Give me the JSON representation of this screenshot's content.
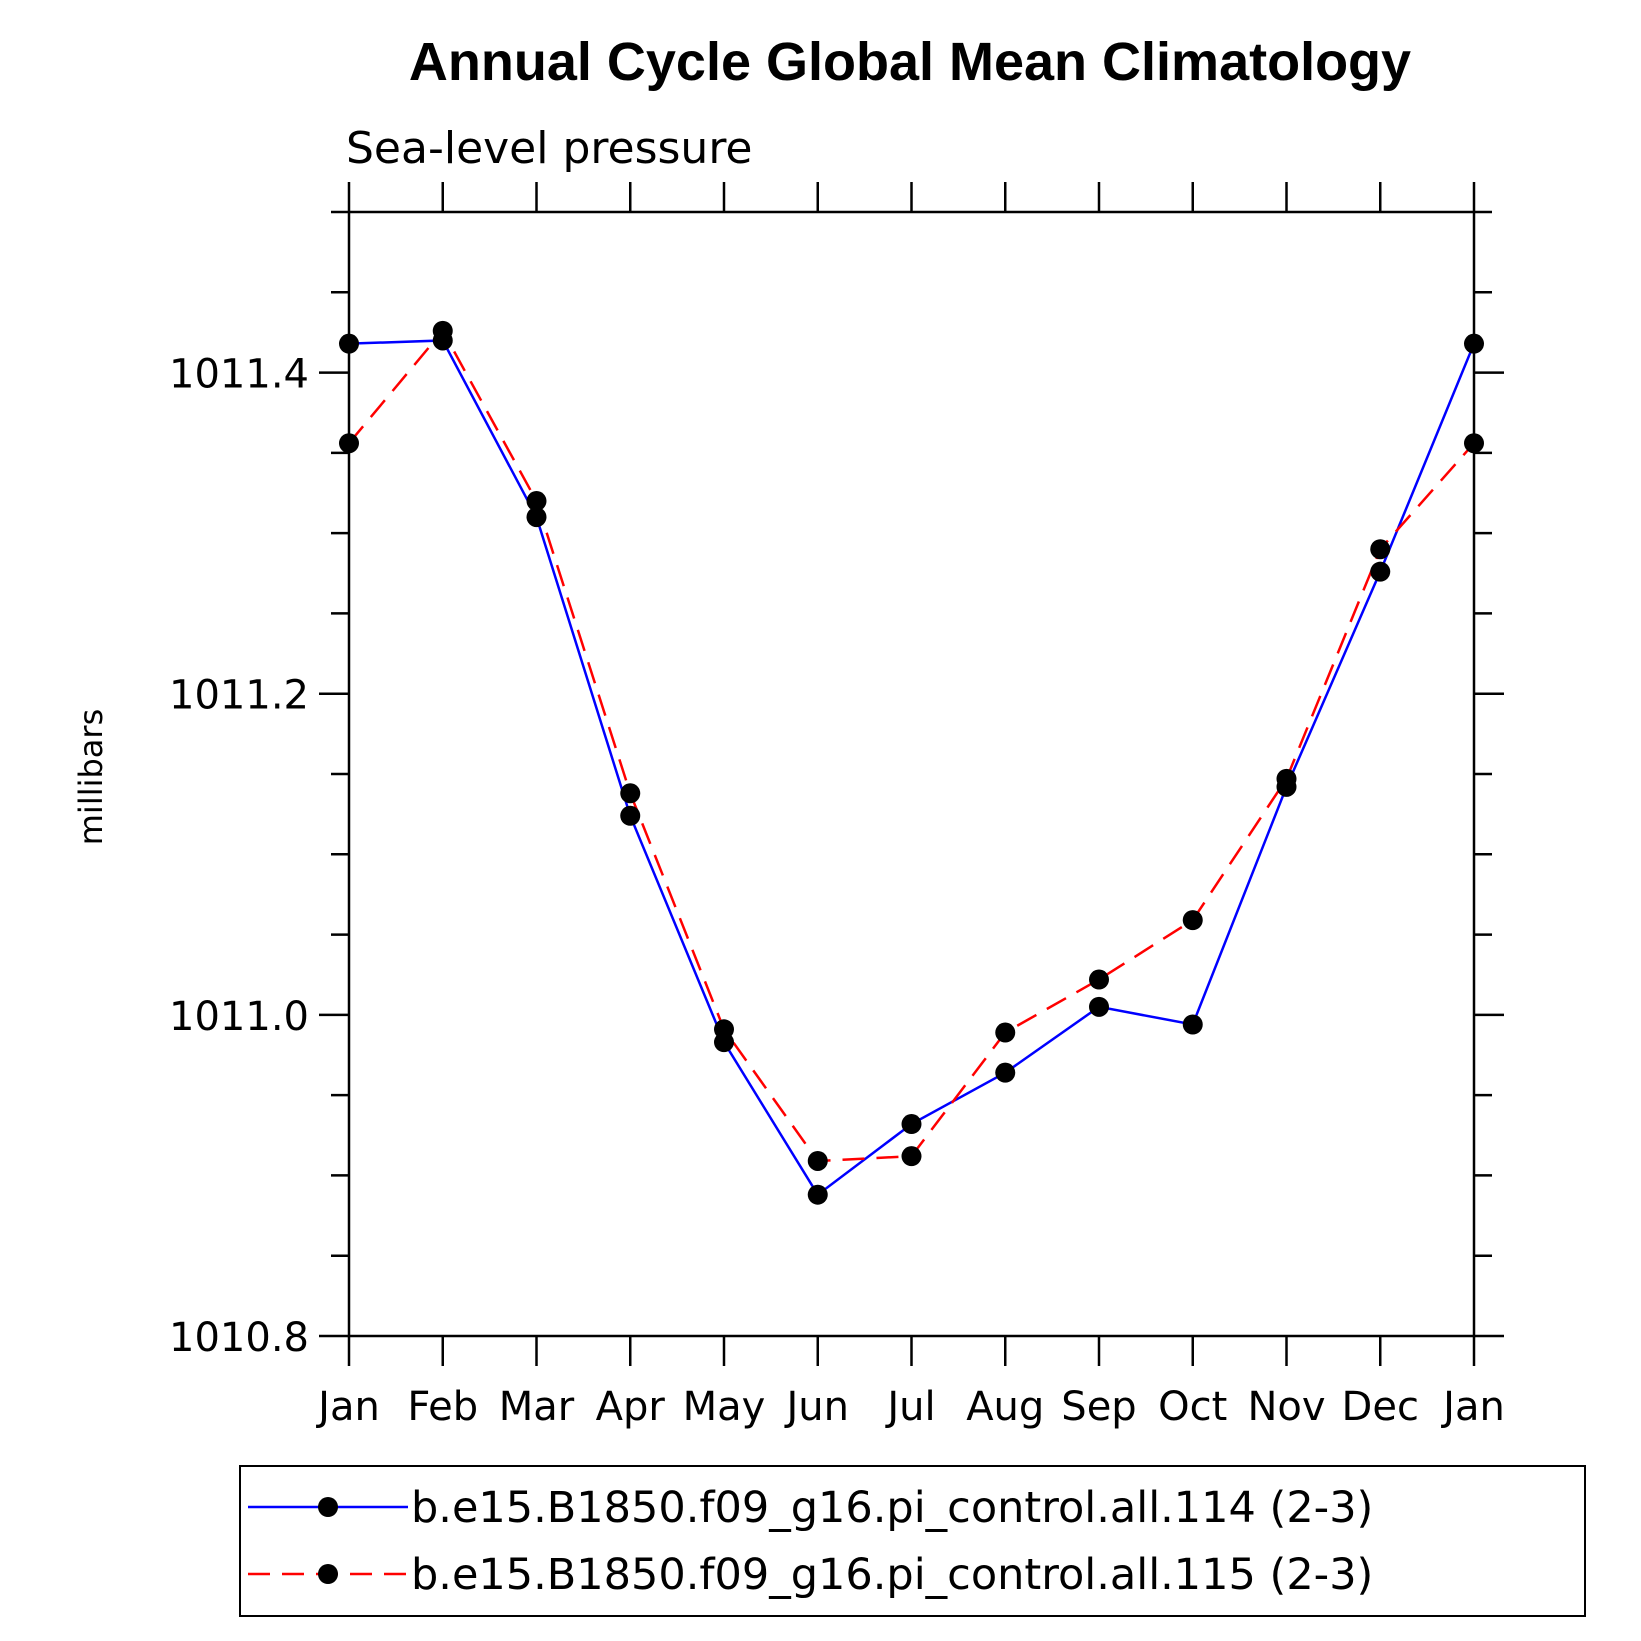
{
  "chart_data": {
    "type": "line",
    "title": "Annual Cycle Global Mean Climatology",
    "subtitle": "Sea-level pressure",
    "ylabel": "millibars",
    "xlabel": "",
    "categories": [
      "Jan",
      "Feb",
      "Mar",
      "Apr",
      "May",
      "Jun",
      "Jul",
      "Aug",
      "Sep",
      "Oct",
      "Nov",
      "Dec",
      "Jan"
    ],
    "ylim": [
      1010.8,
      1011.5
    ],
    "yticks": [
      1010.8,
      1011.0,
      1011.2,
      1011.4
    ],
    "ytick_labels": [
      "1010.8",
      "1011.0",
      "1011.2",
      "1011.4"
    ],
    "y_minor_step": 0.05,
    "grid": false,
    "legend_position": "bottom",
    "series": [
      {
        "name": "b.e15.B1850.f09_g16.pi_control.all.114 (2-3)",
        "color": "#0000ff",
        "style": "solid",
        "values": [
          1011.418,
          1011.42,
          1011.31,
          1011.124,
          1010.983,
          1010.888,
          1010.932,
          1010.964,
          1011.005,
          1010.994,
          1011.142,
          1011.276,
          1011.418
        ]
      },
      {
        "name": "b.e15.B1850.f09_g16.pi_control.all.115 (2-3)",
        "color": "#ff0000",
        "style": "dashed",
        "values": [
          1011.356,
          1011.426,
          1011.32,
          1011.138,
          1010.991,
          1010.909,
          1010.912,
          1010.989,
          1011.022,
          1011.059,
          1011.147,
          1011.29,
          1011.356
        ]
      }
    ]
  }
}
